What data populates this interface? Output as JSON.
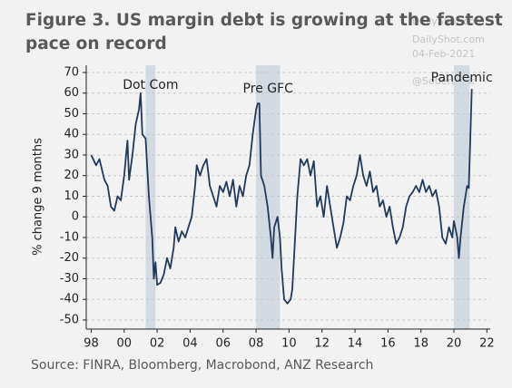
{
  "chart_data": {
    "type": "line",
    "title_lines": [
      "Figure 3. US margin debt is growing at the fastest",
      "pace on record"
    ],
    "watermark": [
      "DailyShot.com",
      "04-Feb-2021",
      "@SoberLook"
    ],
    "y_label": "% change 9 months",
    "source": "Source: FINRA, Bloomberg, Macrobond, ANZ Research",
    "x": [
      1998.0,
      1998.3,
      1998.5,
      1998.8,
      1999.0,
      1999.2,
      1999.4,
      1999.6,
      1999.8,
      2000.0,
      2000.2,
      2000.3,
      2000.5,
      2000.7,
      2000.9,
      2001.0,
      2001.1,
      2001.3,
      2001.5,
      2001.7,
      2001.8,
      2001.9,
      2002.0,
      2002.2,
      2002.4,
      2002.6,
      2002.8,
      2003.0,
      2003.1,
      2003.3,
      2003.5,
      2003.7,
      2003.9,
      2004.1,
      2004.3,
      2004.4,
      2004.6,
      2004.8,
      2005.0,
      2005.2,
      2005.4,
      2005.6,
      2005.8,
      2006.0,
      2006.2,
      2006.4,
      2006.6,
      2006.8,
      2007.0,
      2007.2,
      2007.4,
      2007.6,
      2007.8,
      2008.0,
      2008.1,
      2008.2,
      2008.3,
      2008.5,
      2008.7,
      2008.9,
      2009.0,
      2009.1,
      2009.3,
      2009.45,
      2009.55,
      2009.7,
      2009.9,
      2010.1,
      2010.2,
      2010.4,
      2010.5,
      2010.7,
      2010.9,
      2011.1,
      2011.3,
      2011.5,
      2011.7,
      2011.9,
      2012.1,
      2012.3,
      2012.5,
      2012.7,
      2012.9,
      2013.1,
      2013.3,
      2013.5,
      2013.7,
      2013.9,
      2014.1,
      2014.3,
      2014.5,
      2014.7,
      2014.9,
      2015.1,
      2015.3,
      2015.5,
      2015.7,
      2015.9,
      2016.1,
      2016.3,
      2016.5,
      2016.7,
      2016.9,
      2017.1,
      2017.3,
      2017.5,
      2017.7,
      2017.9,
      2018.1,
      2018.3,
      2018.5,
      2018.7,
      2018.9,
      2019.1,
      2019.3,
      2019.5,
      2019.7,
      2019.9,
      2020.0,
      2020.2,
      2020.3,
      2020.4,
      2020.6,
      2020.8,
      2020.9,
      2021.0,
      2021.08
    ],
    "series": [
      {
        "color": "#1f3a5c",
        "values": [
          30,
          25,
          28,
          18,
          15,
          5,
          3,
          10,
          8,
          20,
          37,
          18,
          30,
          45,
          52,
          60,
          40,
          38,
          10,
          -10,
          -30,
          -22,
          -33,
          -32,
          -28,
          -20,
          -25,
          -15,
          -5,
          -12,
          -7,
          -10,
          -5,
          0,
          15,
          25,
          20,
          25,
          28,
          15,
          10,
          5,
          15,
          12,
          17,
          10,
          18,
          5,
          15,
          10,
          20,
          25,
          40,
          52,
          55,
          55,
          20,
          15,
          5,
          -10,
          -20,
          -5,
          0,
          -10,
          -25,
          -40,
          -42,
          -40,
          -35,
          -5,
          10,
          28,
          25,
          28,
          20,
          27,
          5,
          10,
          0,
          15,
          5,
          -5,
          -15,
          -10,
          -3,
          10,
          8,
          15,
          20,
          30,
          20,
          15,
          22,
          12,
          15,
          5,
          8,
          0,
          5,
          -5,
          -13,
          -10,
          -5,
          5,
          10,
          12,
          15,
          12,
          18,
          12,
          15,
          10,
          13,
          5,
          -10,
          -13,
          -5,
          -10,
          -2,
          -10,
          -20,
          -10,
          5,
          15,
          14,
          40,
          62
        ]
      }
    ],
    "shaded": [
      {
        "label": "Dot Com",
        "start": 2001.3,
        "end": 2001.9
      },
      {
        "label": "Pre GFC",
        "start": 2008.0,
        "end": 2009.45
      },
      {
        "label": "Pandemic",
        "start": 2020.0,
        "end": 2020.95
      }
    ],
    "shade_color": "#d3dae1",
    "xlim": [
      1997.7,
      2022.2
    ],
    "ylim": [
      -54.4,
      73.5
    ],
    "xticks": [
      {
        "value": 1998,
        "label": "98"
      },
      {
        "value": 2000,
        "label": "00"
      },
      {
        "value": 2002,
        "label": "02"
      },
      {
        "value": 2004,
        "label": "04"
      },
      {
        "value": 2006,
        "label": "06"
      },
      {
        "value": 2008,
        "label": "08"
      },
      {
        "value": 2010,
        "label": "10"
      },
      {
        "value": 2012,
        "label": "12"
      },
      {
        "value": 2014,
        "label": "14"
      },
      {
        "value": 2016,
        "label": "16"
      },
      {
        "value": 2018,
        "label": "18"
      },
      {
        "value": 2020,
        "label": "20"
      },
      {
        "value": 2022,
        "label": "22"
      }
    ],
    "yticks": [
      -50,
      -40,
      -30,
      -20,
      -10,
      0,
      10,
      20,
      30,
      40,
      50,
      60,
      70
    ],
    "grid": true
  }
}
